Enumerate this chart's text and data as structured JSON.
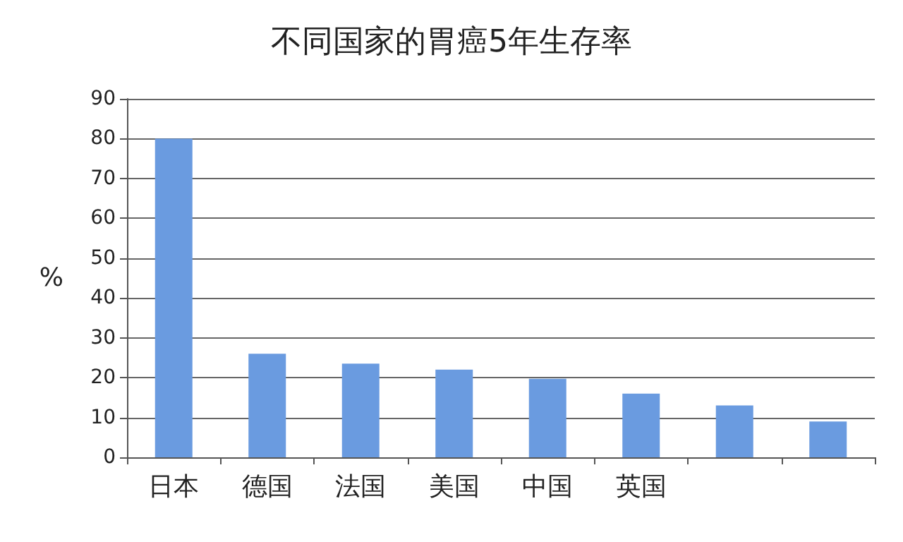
{
  "chart_data": {
    "type": "bar",
    "title": "不同国家的胃癌5年生存率",
    "ylabel": "%",
    "categories": [
      "日本",
      "德国",
      "法国",
      "美国",
      "中国",
      "英国",
      null,
      null
    ],
    "values": [
      80,
      26,
      23.5,
      22,
      19.7,
      16,
      13,
      9
    ],
    "color": "#6a9be0",
    "ylim": [
      0,
      90
    ],
    "yticks": [
      0,
      10,
      20,
      30,
      40,
      50,
      60,
      70,
      80,
      90
    ],
    "grid": "y"
  }
}
